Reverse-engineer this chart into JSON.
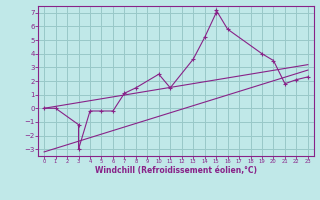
{
  "bg_color": "#c0e8e8",
  "grid_color": "#98c8c8",
  "line_color": "#882288",
  "xlabel": "Windchill (Refroidissement éolien,°C)",
  "xlim": [
    -0.5,
    23.5
  ],
  "ylim": [
    -3.5,
    7.5
  ],
  "yticks": [
    -3,
    -2,
    -1,
    0,
    1,
    2,
    3,
    4,
    5,
    6,
    7
  ],
  "xticks": [
    0,
    1,
    2,
    3,
    4,
    5,
    6,
    7,
    8,
    9,
    10,
    11,
    12,
    13,
    14,
    15,
    16,
    17,
    18,
    19,
    20,
    21,
    22,
    23
  ],
  "scatter_x": [
    0,
    1,
    3,
    3,
    4,
    5,
    6,
    7,
    8,
    10,
    11,
    13,
    14,
    15,
    15,
    16,
    19,
    20,
    21,
    22,
    23
  ],
  "scatter_y": [
    0.0,
    0.0,
    -1.2,
    -3.0,
    -0.2,
    -0.2,
    -0.2,
    1.1,
    1.5,
    2.5,
    1.5,
    3.6,
    5.2,
    7.0,
    7.2,
    5.8,
    4.0,
    3.5,
    1.8,
    2.1,
    2.3
  ],
  "line1_x": [
    0,
    23
  ],
  "line1_y": [
    0.0,
    3.2
  ],
  "line2_x": [
    0,
    23
  ],
  "line2_y": [
    -3.2,
    2.8
  ]
}
